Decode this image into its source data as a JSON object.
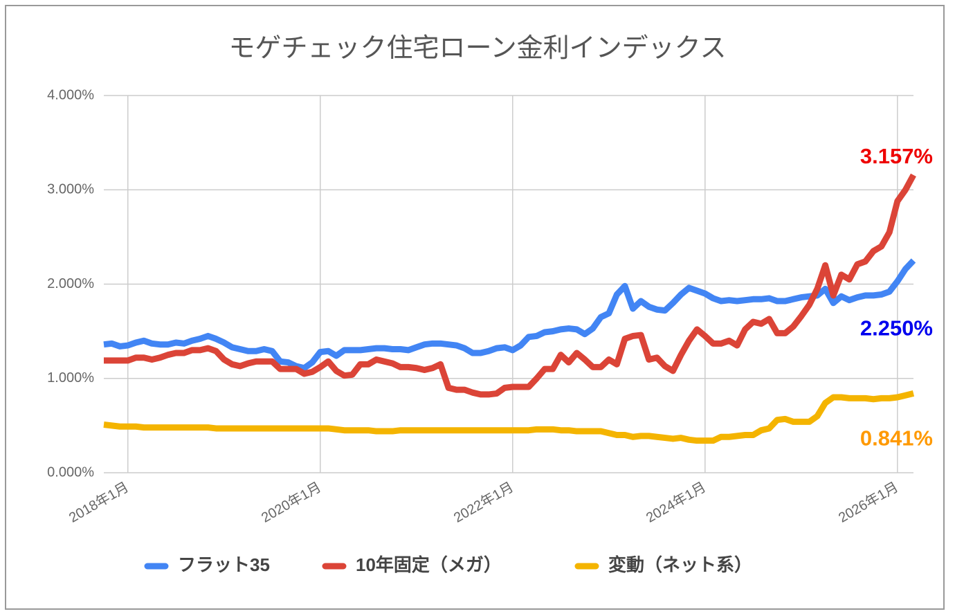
{
  "chart_data": {
    "type": "line",
    "title": "モゲチェック住宅ローン金利インデックス",
    "categories": [
      null,
      null,
      null,
      "2018年1月",
      null,
      null,
      null,
      null,
      null,
      null,
      null,
      null,
      null,
      null,
      null,
      null,
      null,
      null,
      null,
      null,
      null,
      null,
      null,
      null,
      null,
      null,
      null,
      "2020年1月",
      null,
      null,
      null,
      null,
      null,
      null,
      null,
      null,
      null,
      null,
      null,
      null,
      null,
      null,
      null,
      null,
      null,
      null,
      null,
      null,
      null,
      null,
      null,
      "2022年1月",
      null,
      null,
      null,
      null,
      null,
      null,
      null,
      null,
      null,
      null,
      null,
      null,
      null,
      null,
      null,
      null,
      null,
      null,
      null,
      null,
      null,
      null,
      null,
      "2024年1月",
      null,
      null,
      null,
      null,
      null,
      null,
      null,
      null,
      null,
      null,
      null,
      null,
      null,
      null,
      null,
      null,
      null,
      null,
      null,
      null,
      null,
      null,
      null,
      "2026年1月",
      null,
      null
    ],
    "ylim": [
      0,
      4
    ],
    "yticks": [
      {
        "value": 0,
        "label": "0.000%"
      },
      {
        "value": 1,
        "label": "1.000%"
      },
      {
        "value": 2,
        "label": "2.000%"
      },
      {
        "value": 3,
        "label": "3.000%"
      },
      {
        "value": 4,
        "label": "4.000%"
      }
    ],
    "grid": true,
    "legend": "bottom",
    "series": [
      {
        "name": "フラット35",
        "color": "#4285f4",
        "label_color": "#0000ee",
        "values": [
          1.36,
          1.37,
          1.34,
          1.35,
          1.38,
          1.4,
          1.37,
          1.36,
          1.36,
          1.38,
          1.37,
          1.4,
          1.42,
          1.45,
          1.42,
          1.38,
          1.33,
          1.31,
          1.29,
          1.29,
          1.31,
          1.29,
          1.18,
          1.17,
          1.13,
          1.11,
          1.17,
          1.28,
          1.29,
          1.24,
          1.3,
          1.3,
          1.3,
          1.31,
          1.32,
          1.32,
          1.31,
          1.31,
          1.3,
          1.33,
          1.36,
          1.37,
          1.37,
          1.36,
          1.35,
          1.32,
          1.27,
          1.27,
          1.29,
          1.32,
          1.33,
          1.3,
          1.35,
          1.44,
          1.45,
          1.49,
          1.5,
          1.52,
          1.53,
          1.52,
          1.47,
          1.53,
          1.65,
          1.69,
          1.89,
          1.98,
          1.74,
          1.82,
          1.76,
          1.73,
          1.72,
          1.8,
          1.89,
          1.96,
          1.93,
          1.9,
          1.85,
          1.82,
          1.83,
          1.82,
          1.83,
          1.84,
          1.84,
          1.85,
          1.82,
          1.82,
          1.84,
          1.86,
          1.87,
          1.88,
          1.95,
          1.8,
          1.87,
          1.83,
          1.86,
          1.88,
          1.88,
          1.89,
          1.92,
          2.03,
          2.16,
          2.25
        ],
        "value_labels": [
          null,
          null,
          null,
          null,
          null,
          null,
          null,
          null,
          null,
          null,
          null,
          null,
          null,
          null,
          null,
          null,
          null,
          null,
          null,
          null,
          null,
          null,
          null,
          null,
          null,
          null,
          null,
          null,
          null,
          null,
          null,
          null,
          null,
          null,
          null,
          null,
          null,
          null,
          null,
          null,
          null,
          null,
          null,
          null,
          null,
          null,
          null,
          null,
          null,
          null,
          null,
          null,
          null,
          null,
          null,
          null,
          null,
          null,
          null,
          null,
          null,
          null,
          null,
          null,
          null,
          null,
          null,
          null,
          null,
          null,
          null,
          null,
          null,
          null,
          null,
          null,
          null,
          null,
          null,
          null,
          null,
          null,
          null,
          null,
          null,
          null,
          null,
          null,
          null,
          null,
          null,
          null,
          null,
          null,
          null,
          null,
          null,
          null,
          null,
          null,
          null,
          "2.250%"
        ]
      },
      {
        "name": "10年固定（メガ）",
        "color": "#db4437",
        "label_color": "#ee0000",
        "values": [
          1.19,
          1.19,
          1.19,
          1.19,
          1.22,
          1.22,
          1.2,
          1.22,
          1.25,
          1.27,
          1.27,
          1.3,
          1.3,
          1.32,
          1.29,
          1.2,
          1.15,
          1.13,
          1.16,
          1.18,
          1.18,
          1.18,
          1.1,
          1.1,
          1.1,
          1.05,
          1.07,
          1.12,
          1.18,
          1.08,
          1.03,
          1.04,
          1.15,
          1.15,
          1.2,
          1.18,
          1.16,
          1.12,
          1.12,
          1.11,
          1.09,
          1.11,
          1.15,
          0.9,
          0.88,
          0.88,
          0.85,
          0.83,
          0.83,
          0.84,
          0.9,
          0.91,
          0.91,
          0.91,
          1.0,
          1.1,
          1.1,
          1.25,
          1.17,
          1.27,
          1.2,
          1.12,
          1.12,
          1.2,
          1.15,
          1.42,
          1.45,
          1.46,
          1.2,
          1.22,
          1.13,
          1.08,
          1.25,
          1.4,
          1.52,
          1.45,
          1.37,
          1.37,
          1.4,
          1.35,
          1.52,
          1.6,
          1.58,
          1.63,
          1.48,
          1.48,
          1.55,
          1.66,
          1.78,
          1.95,
          2.2,
          1.88,
          2.1,
          2.05,
          2.21,
          2.24,
          2.35,
          2.4,
          2.55,
          2.88,
          3.0,
          3.157
        ],
        "value_labels": [
          null,
          null,
          null,
          null,
          null,
          null,
          null,
          null,
          null,
          null,
          null,
          null,
          null,
          null,
          null,
          null,
          null,
          null,
          null,
          null,
          null,
          null,
          null,
          null,
          null,
          null,
          null,
          null,
          null,
          null,
          null,
          null,
          null,
          null,
          null,
          null,
          null,
          null,
          null,
          null,
          null,
          null,
          null,
          null,
          null,
          null,
          null,
          null,
          null,
          null,
          null,
          null,
          null,
          null,
          null,
          null,
          null,
          null,
          null,
          null,
          null,
          null,
          null,
          null,
          null,
          null,
          null,
          null,
          null,
          null,
          null,
          null,
          null,
          null,
          null,
          null,
          null,
          null,
          null,
          null,
          null,
          null,
          null,
          null,
          null,
          null,
          null,
          null,
          null,
          null,
          null,
          null,
          null,
          null,
          null,
          null,
          null,
          null,
          null,
          null,
          null,
          "3.157%"
        ]
      },
      {
        "name": "変動（ネット系）",
        "color": "#f4b400",
        "label_color": "#ff9900",
        "values": [
          0.51,
          0.5,
          0.49,
          0.49,
          0.49,
          0.48,
          0.48,
          0.48,
          0.48,
          0.48,
          0.48,
          0.48,
          0.48,
          0.48,
          0.47,
          0.47,
          0.47,
          0.47,
          0.47,
          0.47,
          0.47,
          0.47,
          0.47,
          0.47,
          0.47,
          0.47,
          0.47,
          0.47,
          0.47,
          0.46,
          0.45,
          0.45,
          0.45,
          0.45,
          0.44,
          0.44,
          0.44,
          0.45,
          0.45,
          0.45,
          0.45,
          0.45,
          0.45,
          0.45,
          0.45,
          0.45,
          0.45,
          0.45,
          0.45,
          0.45,
          0.45,
          0.45,
          0.45,
          0.45,
          0.46,
          0.46,
          0.46,
          0.45,
          0.45,
          0.44,
          0.44,
          0.44,
          0.44,
          0.42,
          0.4,
          0.4,
          0.38,
          0.39,
          0.39,
          0.38,
          0.37,
          0.36,
          0.37,
          0.35,
          0.34,
          0.34,
          0.34,
          0.38,
          0.38,
          0.39,
          0.4,
          0.4,
          0.45,
          0.47,
          0.56,
          0.57,
          0.54,
          0.54,
          0.54,
          0.6,
          0.74,
          0.8,
          0.8,
          0.79,
          0.79,
          0.79,
          0.78,
          0.79,
          0.79,
          0.8,
          0.82,
          0.841
        ],
        "value_labels": [
          null,
          null,
          null,
          null,
          null,
          null,
          null,
          null,
          null,
          null,
          null,
          null,
          null,
          null,
          null,
          null,
          null,
          null,
          null,
          null,
          null,
          null,
          null,
          null,
          null,
          null,
          null,
          null,
          null,
          null,
          null,
          null,
          null,
          null,
          null,
          null,
          null,
          null,
          null,
          null,
          null,
          null,
          null,
          null,
          null,
          null,
          null,
          null,
          null,
          null,
          null,
          null,
          null,
          null,
          null,
          null,
          null,
          null,
          null,
          null,
          null,
          null,
          null,
          null,
          null,
          null,
          null,
          null,
          null,
          null,
          null,
          null,
          null,
          null,
          null,
          null,
          null,
          null,
          null,
          null,
          null,
          null,
          null,
          null,
          null,
          null,
          null,
          null,
          null,
          null,
          null,
          null,
          null,
          null,
          null,
          null,
          null,
          null,
          null,
          null,
          null,
          "0.841%"
        ]
      }
    ]
  }
}
